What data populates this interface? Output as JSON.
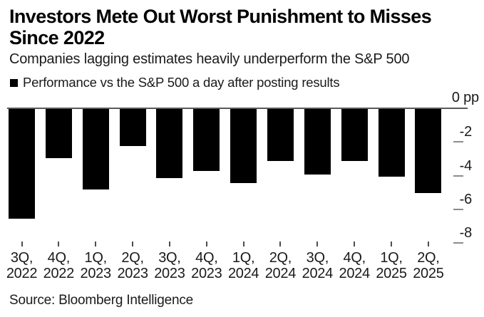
{
  "header": {
    "title_lines": [
      "Investors Mete Out Worst Punishment to Misses",
      "Since 2022"
    ],
    "subtitle": "Companies lagging estimates heavily underperform the S&P 500",
    "legend_label": "Performance vs the S&P 500 a day after posting results",
    "legend_swatch_color": "#000000"
  },
  "chart_data": {
    "type": "bar",
    "title": "Investors Mete Out Worst Punishment to Misses Since 2022",
    "subtitle": "Companies lagging estimates heavily underperform the S&P 500",
    "series_name": "Performance vs the S&P 500 a day after posting results",
    "categories": [
      "3Q 2022",
      "4Q 2022",
      "1Q 2023",
      "2Q 2023",
      "3Q 2023",
      "4Q 2023",
      "1Q 2024",
      "2Q 2024",
      "3Q 2024",
      "4Q 2024",
      "1Q 2025",
      "2Q 2025"
    ],
    "categories_line1": [
      "3Q,",
      "4Q,",
      "1Q,",
      "2Q,",
      "3Q,",
      "4Q,",
      "1Q,",
      "2Q,",
      "3Q,",
      "4Q,",
      "1Q,",
      "2Q,"
    ],
    "categories_line2": [
      "2022",
      "2022",
      "2023",
      "2023",
      "2023",
      "2023",
      "2024",
      "2024",
      "2024",
      "2024",
      "2025",
      "2025"
    ],
    "values": [
      -6.5,
      -2.9,
      -4.8,
      -2.2,
      -4.1,
      -3.7,
      -4.4,
      -3.1,
      -3.9,
      -3.1,
      -4.0,
      -5.0
    ],
    "unit": "pp",
    "ylabel_top": "0 pp",
    "yticks": [
      0,
      -2,
      -4,
      -6,
      -8
    ],
    "ylim": [
      -8,
      0
    ],
    "grid": false,
    "bar_color": "#000000",
    "axis_line_color": "#595959",
    "tick_color": "#8c8c8c",
    "legend_position": "top-left"
  },
  "footer": {
    "source": "Source: Bloomberg Intelligence"
  }
}
